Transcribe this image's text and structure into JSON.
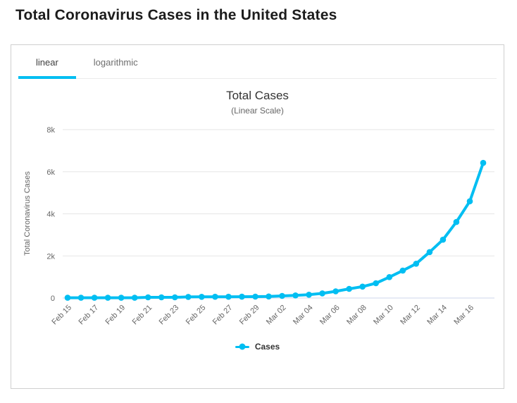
{
  "page": {
    "title": "Total Coronavirus Cases in the United States"
  },
  "tabs": [
    {
      "label": "linear",
      "active": true
    },
    {
      "label": "logarithmic",
      "active": false
    }
  ],
  "chart_data": {
    "type": "line",
    "title": "Total Cases",
    "subtitle": "(Linear Scale)",
    "xlabel": "",
    "ylabel": "Total Coronavirus Cases",
    "x": [
      "Feb 15",
      "Feb 16",
      "Feb 17",
      "Feb 18",
      "Feb 19",
      "Feb 20",
      "Feb 21",
      "Feb 22",
      "Feb 23",
      "Feb 24",
      "Feb 25",
      "Feb 26",
      "Feb 27",
      "Feb 28",
      "Feb 29",
      "Mar 01",
      "Mar 02",
      "Mar 03",
      "Mar 04",
      "Mar 05",
      "Mar 06",
      "Mar 07",
      "Mar 08",
      "Mar 09",
      "Mar 10",
      "Mar 11",
      "Mar 12",
      "Mar 13",
      "Mar 14",
      "Mar 15",
      "Mar 16",
      "Mar 17"
    ],
    "series": [
      {
        "name": "Cases",
        "color": "#00bef2",
        "values": [
          15,
          15,
          15,
          15,
          15,
          15,
          35,
          35,
          35,
          53,
          57,
          60,
          60,
          63,
          68,
          75,
          100,
          124,
          158,
          221,
          319,
          435,
          541,
          704,
          994,
          1301,
          1630,
          2183,
          2770,
          3613,
          4596,
          6421
        ]
      }
    ],
    "ylim": [
      0,
      8000
    ],
    "y_ticks": [
      0,
      2000,
      4000,
      6000,
      8000
    ],
    "y_tick_labels": [
      "0",
      "2k",
      "4k",
      "6k",
      "8k"
    ],
    "x_tick_interval": 2,
    "x_label_rotation": -45,
    "grid": true,
    "legend_position": "bottom",
    "marker": "circle"
  },
  "colors": {
    "accent": "#00bef2",
    "grid": "#e6e6e6",
    "axis_line": "#ccd6eb",
    "tick_text": "#666666",
    "title_text": "#333333",
    "card_border": "#cfcfcf",
    "tabbar_border": "#ebebeb"
  }
}
